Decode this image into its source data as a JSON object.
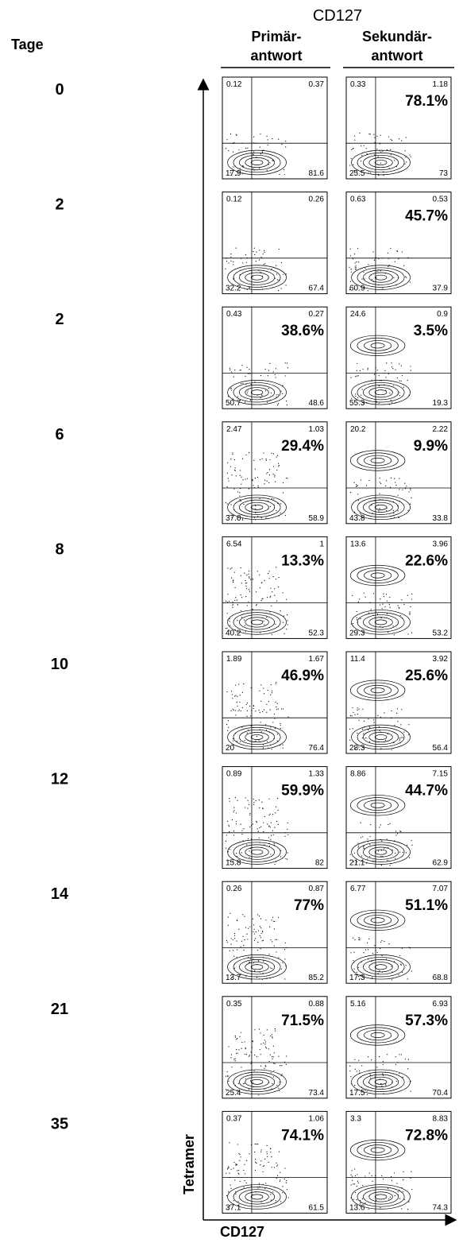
{
  "header": {
    "title": "CD127",
    "days_label": "Tage",
    "columns": [
      "Primär-\nantwort",
      "Sekundär-\nantwort"
    ]
  },
  "axes": {
    "y_label": "Tetramer",
    "x_label": "CD127"
  },
  "rows": [
    {
      "day": "0",
      "primary": {
        "ul": "0.12",
        "ur": "0.37",
        "ll": "17.9",
        "lr": "81.6"
      },
      "secondary": {
        "ul": "0.33",
        "ur": "1.18",
        "ll": "25.5",
        "lr": "73",
        "percent": "78.1%"
      }
    },
    {
      "day": "2",
      "primary": {
        "ul": "0.12",
        "ur": "0.26",
        "ll": "32.2",
        "lr": "67.4"
      },
      "secondary": {
        "ul": "0.63",
        "ur": "0.53",
        "ll": "60.9",
        "lr": "37.9",
        "percent": "45.7%"
      }
    },
    {
      "day": "2",
      "primary": {
        "ul": "0.43",
        "ur": "0.27",
        "ll": "50.7",
        "lr": "48.6",
        "percent": "38.6%"
      },
      "secondary": {
        "ul": "24.6",
        "ur": "0.9",
        "ll": "55.3",
        "lr": "19.3",
        "percent": "3.5%"
      }
    },
    {
      "day": "6",
      "primary": {
        "ul": "2.47",
        "ur": "1.03",
        "ll": "37.6",
        "lr": "58.9",
        "percent": "29.4%"
      },
      "secondary": {
        "ul": "20.2",
        "ur": "2.22",
        "ll": "43.8",
        "lr": "33.8",
        "percent": "9.9%"
      }
    },
    {
      "day": "8",
      "primary": {
        "ul": "6.54",
        "ur": "1",
        "ll": "40.2",
        "lr": "52.3",
        "percent": "13.3%"
      },
      "secondary": {
        "ul": "13.6",
        "ur": "3.96",
        "ll": "29.3",
        "lr": "53.2",
        "percent": "22.6%"
      }
    },
    {
      "day": "10",
      "primary": {
        "ul": "1.89",
        "ur": "1.67",
        "ll": "20",
        "lr": "76.4",
        "percent": "46.9%"
      },
      "secondary": {
        "ul": "11.4",
        "ur": "3.92",
        "ll": "28.3",
        "lr": "56.4",
        "percent": "25.6%"
      }
    },
    {
      "day": "12",
      "primary": {
        "ul": "0.89",
        "ur": "1.33",
        "ll": "15.8",
        "lr": "82",
        "percent": "59.9%"
      },
      "secondary": {
        "ul": "8.86",
        "ur": "7.15",
        "ll": "21.1",
        "lr": "62.9",
        "percent": "44.7%"
      }
    },
    {
      "day": "14",
      "primary": {
        "ul": "0.26",
        "ur": "0.87",
        "ll": "13.7",
        "lr": "85.2",
        "percent": "77%"
      },
      "secondary": {
        "ul": "6.77",
        "ur": "7.07",
        "ll": "17.3",
        "lr": "68.8",
        "percent": "51.1%"
      }
    },
    {
      "day": "21",
      "primary": {
        "ul": "0.35",
        "ur": "0.88",
        "ll": "25.4",
        "lr": "73.4",
        "percent": "71.5%"
      },
      "secondary": {
        "ul": "5.16",
        "ur": "6.93",
        "ll": "17.5",
        "lr": "70.4",
        "percent": "57.3%"
      }
    },
    {
      "day": "35",
      "primary": {
        "ul": "0.37",
        "ur": "1.06",
        "ll": "37.1",
        "lr": "61.5",
        "percent": "74.1%"
      },
      "secondary": {
        "ul": "3.3",
        "ur": "8.83",
        "ll": "13.6",
        "lr": "74.3",
        "percent": "72.8%"
      }
    }
  ]
}
